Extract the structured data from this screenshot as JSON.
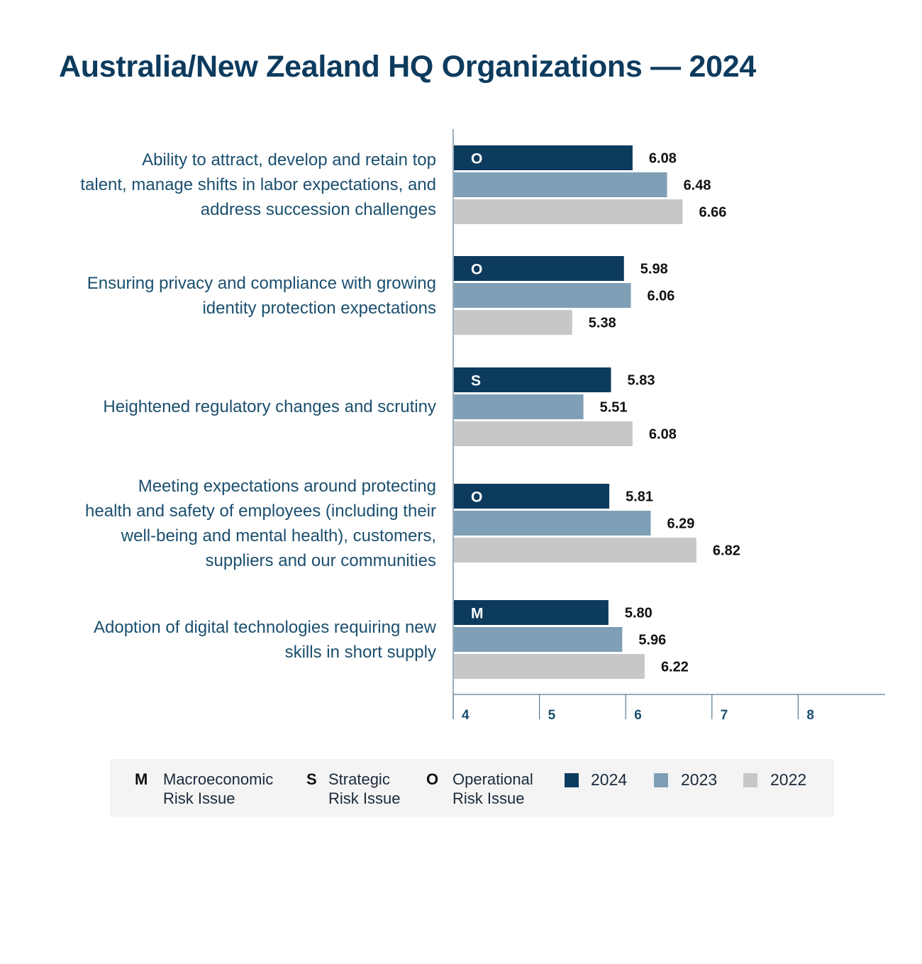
{
  "title": "Australia/New Zealand HQ Organizations — 2024",
  "colors": {
    "y2024": "#0d3b5e",
    "y2023": "#7e9fb5",
    "y2022": "#c7c7c7",
    "axis": "#5a7a92",
    "label": "#1b4f6e"
  },
  "chart_data": {
    "type": "bar",
    "orientation": "horizontal",
    "title": "Australia/New Zealand HQ Organizations — 2024",
    "xlim": [
      4,
      9
    ],
    "xticks": [
      4,
      5,
      6,
      7,
      8
    ],
    "categories": [
      "Ability to attract, develop and retain top talent, manage shifts in labor expectations, and address succession challenges",
      "Ensuring privacy and compliance with growing identity protection expectations",
      "Heightened regulatory changes and scrutiny",
      "Meeting expectations around protecting health and safety of employees (including their well-being and mental health), customers, suppliers and our communities",
      "Adoption of digital technologies requiring new skills in short supply"
    ],
    "category_lines": [
      [
        "Ability to attract, develop and retain top",
        "talent, manage shifts in labor expectations, and",
        "address succession challenges"
      ],
      [
        "Ensuring privacy and compliance with growing",
        "identity protection expectations"
      ],
      [
        "Heightened regulatory changes and scrutiny"
      ],
      [
        "Meeting expectations around protecting",
        "health and safety of employees (including their",
        "well-being and mental health), customers,",
        "suppliers and our communities"
      ],
      [
        "Adoption of digital technologies requiring new",
        "skills in short supply"
      ]
    ],
    "risk_codes": [
      "O",
      "O",
      "S",
      "O",
      "M"
    ],
    "series": [
      {
        "name": "2024",
        "values": [
          6.08,
          5.98,
          5.83,
          5.81,
          5.8
        ]
      },
      {
        "name": "2023",
        "values": [
          6.48,
          6.06,
          5.51,
          6.29,
          5.96
        ]
      },
      {
        "name": "2022",
        "values": [
          6.66,
          5.38,
          6.08,
          6.82,
          6.22
        ]
      }
    ],
    "value_labels": [
      [
        "6.08",
        "5.98",
        "5.83",
        "5.81",
        "5.80"
      ],
      [
        "6.48",
        "6.06",
        "5.51",
        "6.29",
        "5.96"
      ],
      [
        "6.66",
        "5.38",
        "6.08",
        "6.82",
        "6.22"
      ]
    ],
    "grid": false,
    "legend_position": "bottom"
  },
  "legend": {
    "risk_types": [
      {
        "code": "M",
        "line1": "Macroeconomic",
        "line2": "Risk Issue"
      },
      {
        "code": "S",
        "line1": "Strategic",
        "line2": "Risk Issue"
      },
      {
        "code": "O",
        "line1": "Operational",
        "line2": "Risk Issue"
      }
    ],
    "years": [
      "2024",
      "2023",
      "2022"
    ]
  }
}
